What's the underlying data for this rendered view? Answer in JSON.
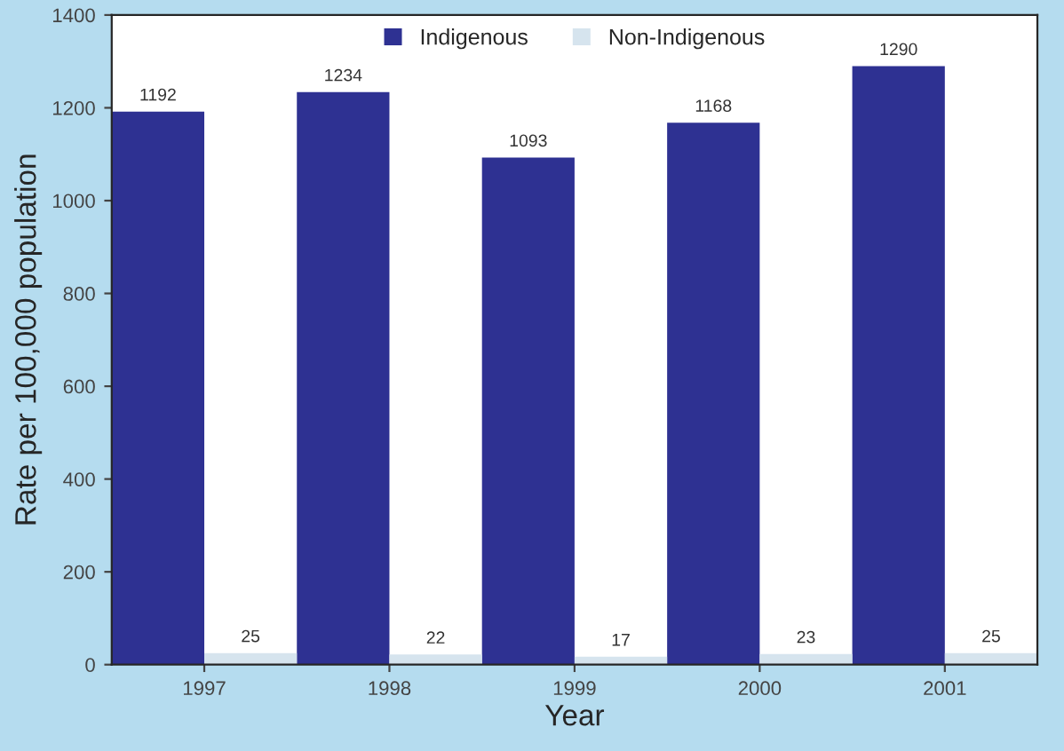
{
  "chart_data": {
    "type": "bar",
    "xlabel": "Year",
    "ylabel": "Rate per 100,000 population",
    "categories": [
      "1997",
      "1998",
      "1999",
      "2000",
      "2001"
    ],
    "series": [
      {
        "name": "Indigenous",
        "color": "#2e3192",
        "values": [
          1192,
          1234,
          1093,
          1168,
          1290
        ]
      },
      {
        "name": "Non-Indigenous",
        "color": "#d6e4ee",
        "values": [
          25,
          22,
          17,
          23,
          25
        ]
      }
    ],
    "ylim": [
      0,
      1400
    ],
    "yticks": [
      0,
      200,
      400,
      600,
      800,
      1000,
      1200,
      1400
    ],
    "data_labels": true,
    "legend": "top",
    "grid": false
  }
}
